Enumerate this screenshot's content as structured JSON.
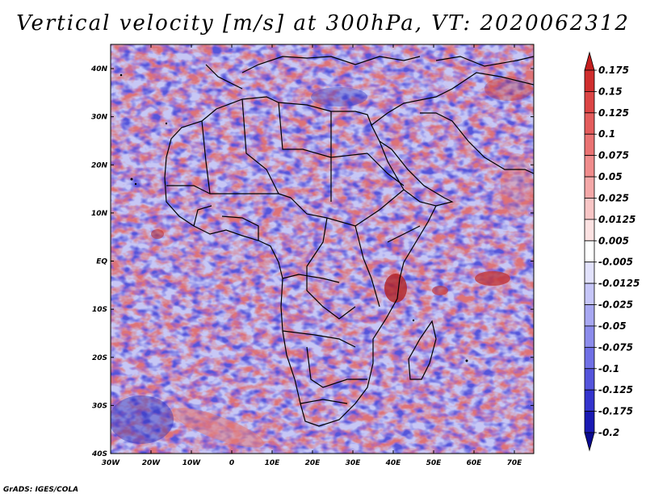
{
  "title": "Vertical velocity [m/s] at 300hPa, VT: 2020062312",
  "credit": "GrADS: IGES/COLA",
  "lat_labels": [
    "40N",
    "30N",
    "20N",
    "10N",
    "EQ",
    "10S",
    "20S",
    "30S",
    "40S"
  ],
  "lon_labels": [
    "30W",
    "20W",
    "10W",
    "0",
    "10E",
    "20E",
    "30E",
    "40E",
    "50E",
    "60E",
    "70E"
  ],
  "colorbar": {
    "labels": [
      "0.175",
      "0.15",
      "0.125",
      "0.1",
      "0.075",
      "0.05",
      "0.025",
      "0.0125",
      "0.005",
      "-0.005",
      "-0.0125",
      "-0.025",
      "-0.05",
      "-0.075",
      "-0.1",
      "-0.125",
      "-0.175",
      "-0.2"
    ],
    "colors": [
      "#c41e1e",
      "#d02e2e",
      "#dc4545",
      "#e45c5c",
      "#ea7373",
      "#f08c8c",
      "#f4a8a8",
      "#f8c6c6",
      "#fce2e2",
      "#ffffff",
      "#e2e2fc",
      "#c6c6f8",
      "#a8a8f2",
      "#8c8cec",
      "#7070e6",
      "#5454dc",
      "#3434ce",
      "#1a1ab4",
      "#0a0a90"
    ]
  }
}
